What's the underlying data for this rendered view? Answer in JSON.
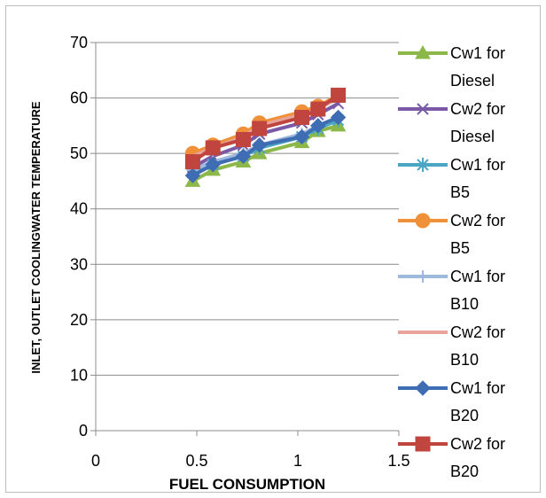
{
  "chart_data": {
    "type": "line",
    "xlabel": "FUEL CONSUMPTION",
    "ylabel": "INLET, OUTLET COOLINGWATER TEMPERATURE",
    "xlim": [
      0,
      1.5
    ],
    "ylim": [
      0,
      70
    ],
    "x_ticks": [
      "0",
      "0.5",
      "1",
      "1.5"
    ],
    "y_ticks": [
      "0",
      "10",
      "20",
      "30",
      "40",
      "50",
      "60",
      "70"
    ],
    "grid": "horizontal",
    "legend_position": "right",
    "series": [
      {
        "name": "Cw1 for Diesel",
        "color": "#8cb84a",
        "marker": "triangle",
        "x": [
          0.48,
          0.58,
          0.73,
          0.81,
          1.02,
          1.1,
          1.2
        ],
        "y": [
          45,
          47,
          48.5,
          50,
          52,
          54,
          55
        ]
      },
      {
        "name": "Cw2 for Diesel",
        "color": "#7a5aa6",
        "marker": "x",
        "x": [
          0.48,
          0.58,
          0.73,
          0.81,
          1.02,
          1.1,
          1.2
        ],
        "y": [
          47.5,
          49.5,
          51.5,
          53.5,
          55.5,
          57,
          59
        ]
      },
      {
        "name": "Cw1 for B5",
        "color": "#4ba6c4",
        "marker": "asterisk",
        "x": [
          0.48,
          0.58,
          0.73,
          0.81,
          1.02,
          1.1,
          1.2
        ],
        "y": [
          46.5,
          48,
          49.5,
          51,
          53,
          54.5,
          56
        ]
      },
      {
        "name": "Cw2 for B5",
        "color": "#f0913a",
        "marker": "circle",
        "x": [
          0.48,
          0.58,
          0.73,
          0.81,
          1.02,
          1.1,
          1.2
        ],
        "y": [
          50,
          51.5,
          53.5,
          55.5,
          57.5,
          58.5,
          60.5
        ]
      },
      {
        "name": "Cw1 for B10",
        "color": "#9fb8de",
        "marker": "plus",
        "x": [
          0.48,
          0.58,
          0.73,
          0.81,
          1.02,
          1.1,
          1.2
        ],
        "y": [
          47,
          48.5,
          50,
          51.5,
          53.5,
          55,
          56.5
        ]
      },
      {
        "name": "Cw2 for B10",
        "color": "#e8a39a",
        "marker": "none",
        "x": [
          0.48,
          0.58,
          0.73,
          0.81,
          1.02,
          1.1,
          1.2
        ],
        "y": [
          49.5,
          51,
          53,
          55,
          57,
          58,
          60
        ]
      },
      {
        "name": "Cw1 for B20",
        "color": "#3e6db3",
        "marker": "diamond",
        "x": [
          0.48,
          0.58,
          0.73,
          0.81,
          1.02,
          1.1,
          1.2
        ],
        "y": [
          46,
          48,
          49.5,
          51.5,
          53,
          55,
          56.5
        ]
      },
      {
        "name": "Cw2 for B20",
        "color": "#c0453f",
        "marker": "square",
        "x": [
          0.48,
          0.58,
          0.73,
          0.81,
          1.02,
          1.1,
          1.2
        ],
        "y": [
          48.5,
          51,
          52.5,
          54.5,
          56.5,
          58,
          60.5
        ]
      }
    ]
  }
}
